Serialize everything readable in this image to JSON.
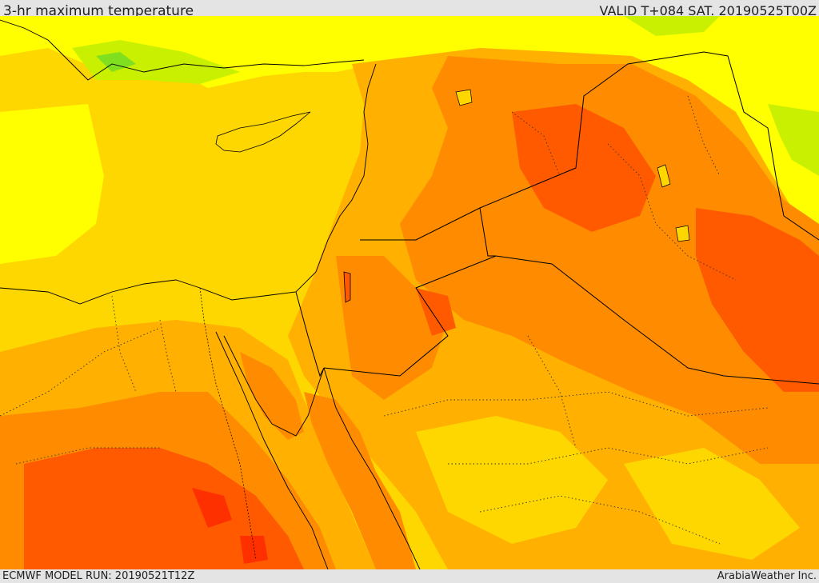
{
  "header": {
    "title": "3-hr maximum temperature",
    "valid": "VALID T+084 SAT. 20190525T00Z"
  },
  "footer": {
    "model_run": "ECMWF MODEL RUN: 20190521T12Z",
    "credit": "ArabiaWeather Inc."
  },
  "palette": {
    "cool_green": "#80e020",
    "light_green": "#c8f000",
    "yellow": "#ffff00",
    "yellow_orange": "#ffd700",
    "orange": "#ffb000",
    "dark_orange": "#ff8c00",
    "red_orange": "#ff5a00",
    "red": "#ff3000",
    "border_line": "#000000"
  }
}
